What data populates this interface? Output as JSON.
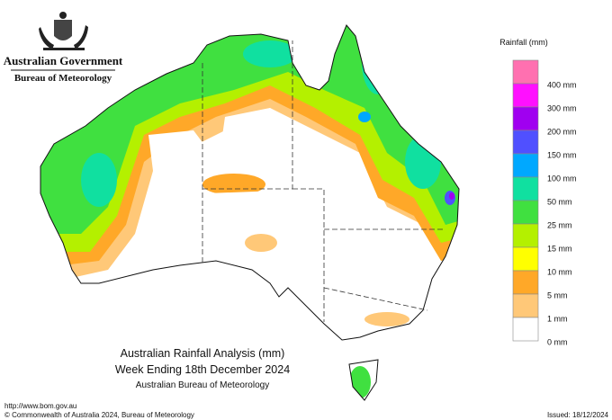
{
  "header": {
    "government": "Australian Government",
    "agency": "Bureau of Meteorology"
  },
  "legend": {
    "title": "Rainfall (mm)",
    "items": [
      {
        "color": "#ff70b0",
        "label": "400 mm"
      },
      {
        "color": "#ff10ff",
        "label": "300 mm"
      },
      {
        "color": "#a000f0",
        "label": "200 mm"
      },
      {
        "color": "#5050ff",
        "label": "150 mm"
      },
      {
        "color": "#00a8ff",
        "label": "100 mm"
      },
      {
        "color": "#10e0a0",
        "label": "50 mm"
      },
      {
        "color": "#40e040",
        "label": "25 mm"
      },
      {
        "color": "#b4f000",
        "label": "15 mm"
      },
      {
        "color": "#ffff00",
        "label": "10 mm"
      },
      {
        "color": "#ffa828",
        "label": "5 mm"
      },
      {
        "color": "#ffc878",
        "label": "1 mm"
      },
      {
        "color": "#ffffff",
        "label": "0 mm"
      }
    ]
  },
  "caption": {
    "title": "Australian Rainfall Analysis (mm)",
    "period": "Week Ending 18th December 2024",
    "source": "Australian Bureau of Meteorology"
  },
  "footer": {
    "url": "http://www.bom.gov.au",
    "copyright": "© Commonwealth of Australia 2024, Bureau of Meteorology",
    "issued": "Issued: 18/12/2024"
  }
}
